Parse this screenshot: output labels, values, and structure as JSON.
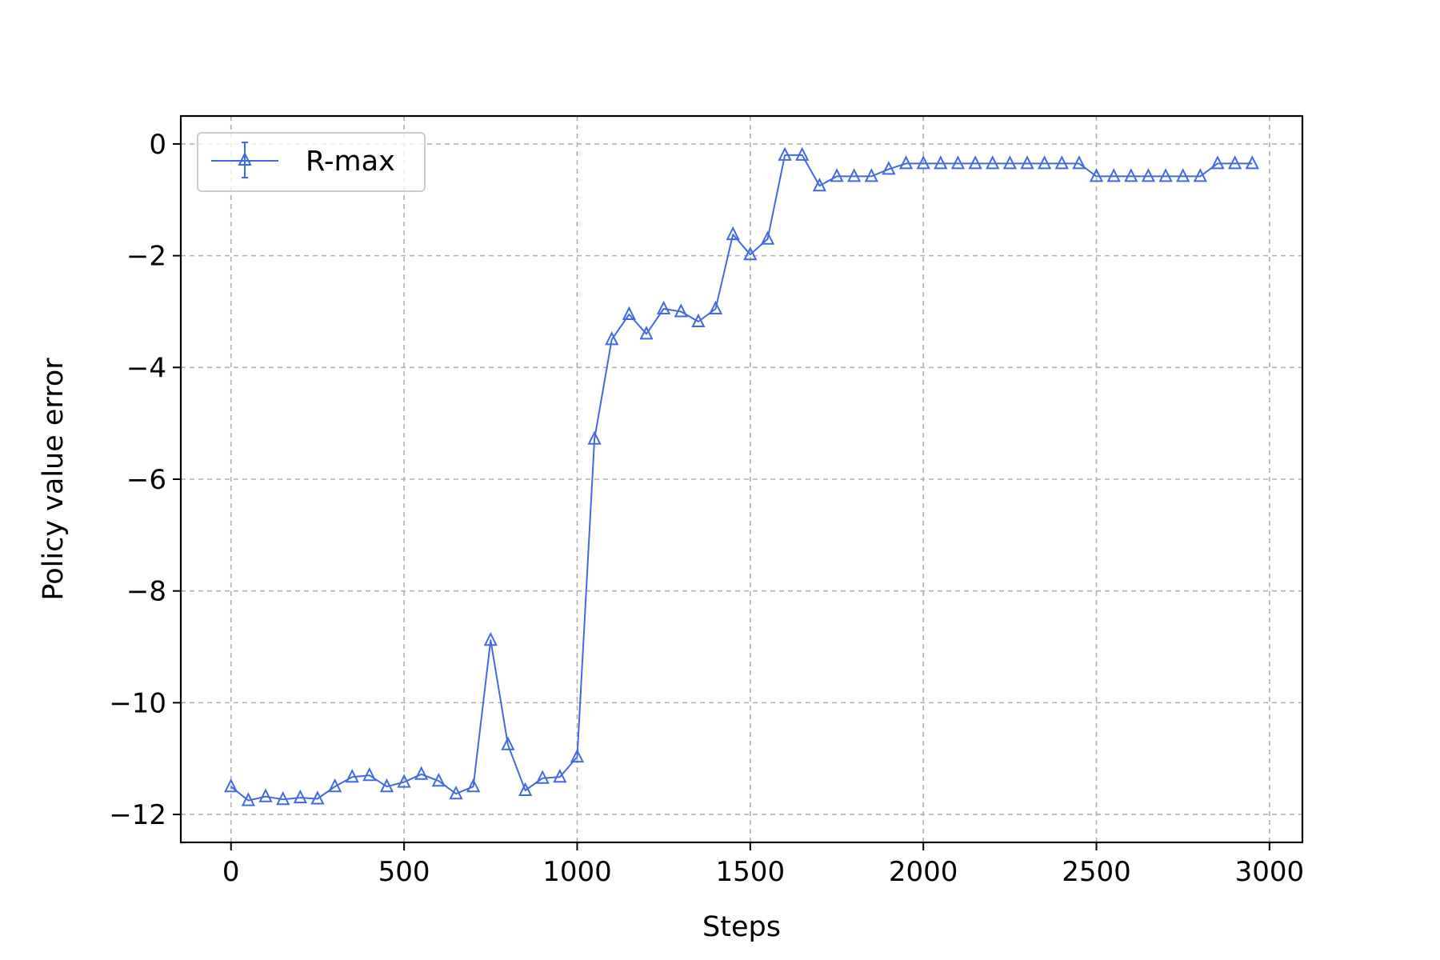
{
  "chart_data": {
    "type": "line",
    "title": "",
    "xlabel": "Steps",
    "ylabel": "Policy value error",
    "xlim": [
      -145,
      3095
    ],
    "ylim": [
      -12.5,
      0.5
    ],
    "xticks": [
      0,
      500,
      1000,
      1500,
      2000,
      2500,
      3000
    ],
    "xtick_labels": [
      "0",
      "500",
      "1000",
      "1500",
      "2000",
      "2500",
      "3000"
    ],
    "yticks": [
      0,
      -2,
      -4,
      -6,
      -8,
      -10,
      -12
    ],
    "ytick_labels": [
      "0",
      "−2",
      "−4",
      "−6",
      "−8",
      "−10",
      "−12"
    ],
    "grid": true,
    "legend_position": "top-left",
    "series": [
      {
        "name": "R-max",
        "color": "#4169e1",
        "marker": "triangle-up",
        "x": [
          0,
          50,
          100,
          150,
          200,
          250,
          300,
          350,
          400,
          450,
          500,
          550,
          600,
          650,
          700,
          750,
          800,
          850,
          900,
          950,
          1000,
          1050,
          1100,
          1150,
          1200,
          1250,
          1300,
          1350,
          1400,
          1450,
          1500,
          1550,
          1600,
          1650,
          1700,
          1750,
          1800,
          1850,
          1900,
          1950,
          2000,
          2050,
          2100,
          2150,
          2200,
          2250,
          2300,
          2350,
          2400,
          2450,
          2500,
          2550,
          2600,
          2650,
          2700,
          2750,
          2800,
          2850,
          2900,
          2950
        ],
        "y": [
          -11.5,
          -11.75,
          -11.68,
          -11.73,
          -11.7,
          -11.72,
          -11.5,
          -11.33,
          -11.3,
          -11.5,
          -11.42,
          -11.28,
          -11.4,
          -11.63,
          -11.5,
          -8.88,
          -10.75,
          -11.57,
          -11.35,
          -11.33,
          -10.97,
          -5.28,
          -3.5,
          -3.05,
          -3.4,
          -2.95,
          -3.0,
          -3.18,
          -2.95,
          -1.62,
          -1.98,
          -1.7,
          -0.2,
          -0.2,
          -0.75,
          -0.58,
          -0.58,
          -0.58,
          -0.45,
          -0.35,
          -0.35,
          -0.35,
          -0.35,
          -0.35,
          -0.35,
          -0.35,
          -0.35,
          -0.35,
          -0.35,
          -0.35,
          -0.58,
          -0.58,
          -0.58,
          -0.58,
          -0.58,
          -0.58,
          -0.58,
          -0.35,
          -0.35,
          -0.35
        ]
      }
    ]
  }
}
